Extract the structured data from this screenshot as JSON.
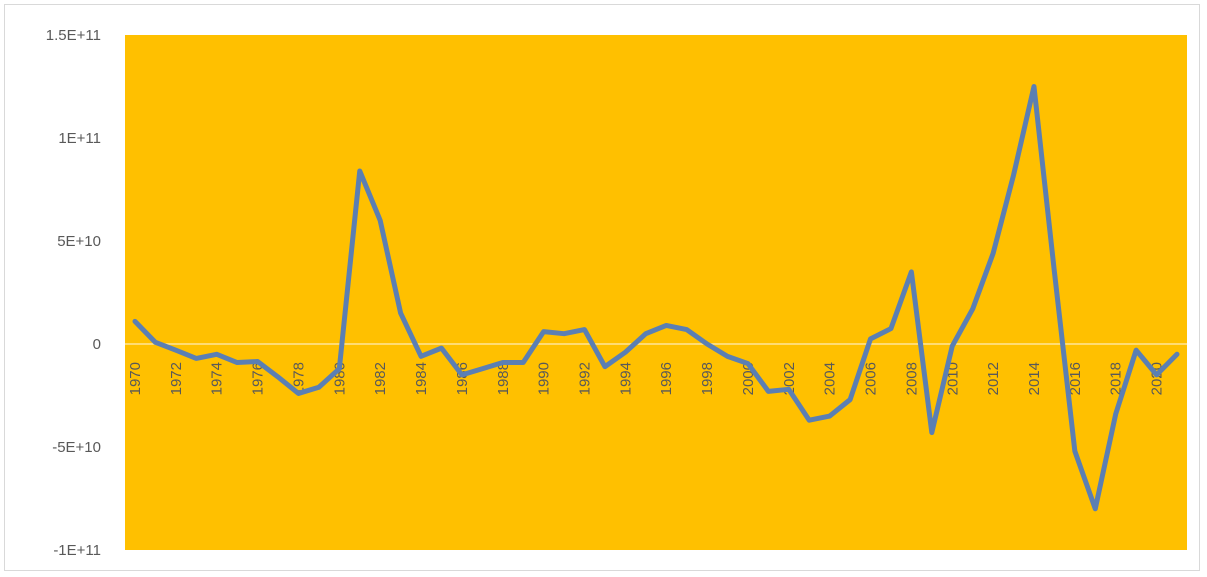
{
  "chart_data": {
    "type": "line",
    "title": "",
    "xlabel": "",
    "ylabel": "",
    "ylim": [
      -100000000000,
      150000000000
    ],
    "y_ticks": [
      {
        "value": 150000000000,
        "label": "1.5E+11"
      },
      {
        "value": 100000000000,
        "label": "1E+11"
      },
      {
        "value": 50000000000,
        "label": "5E+10"
      },
      {
        "value": 0,
        "label": "0"
      },
      {
        "value": -50000000000,
        "label": "-5E+10"
      },
      {
        "value": -100000000000,
        "label": "-1E+11"
      }
    ],
    "x_tick_labels": [
      "1970",
      "1972",
      "1974",
      "1976",
      "1978",
      "1980",
      "1982",
      "1984",
      "1986",
      "1988",
      "1990",
      "1992",
      "1994",
      "1996",
      "1998",
      "2000",
      "2002",
      "2004",
      "2006",
      "2008",
      "2010",
      "2012",
      "2014",
      "2016",
      "2018",
      "2020"
    ],
    "grid": false,
    "legend": "none",
    "colors": {
      "plot_area": "#ffc000",
      "line": "#5b7fb3",
      "zero_line": "#ffe699",
      "tick_text": "#595959"
    },
    "series": [
      {
        "x": [
          1970,
          1971,
          1972,
          1973,
          1974,
          1975,
          1976,
          1977,
          1978,
          1979,
          1980,
          1981,
          1982,
          1983,
          1984,
          1985,
          1986,
          1987,
          1988,
          1989,
          1990,
          1991,
          1992,
          1993,
          1994,
          1995,
          1996,
          1997,
          1998,
          1999,
          2000,
          2001,
          2002,
          2003,
          2004,
          2005,
          2006,
          2007,
          2008,
          2009,
          2010,
          2011,
          2012,
          2013,
          2014,
          2015,
          2016,
          2017,
          2018,
          2019,
          2020,
          2021
        ],
        "values": [
          11000000000,
          800000000,
          -3000000000,
          -7000000000,
          -5000000000,
          -9000000000,
          -8500000000,
          -16000000000,
          -24000000000,
          -21000000000,
          -12000000000,
          84000000000,
          60000000000,
          15000000000,
          -6000000000,
          -2000000000,
          -15000000000,
          -12000000000,
          -9000000000,
          -9000000000,
          6000000000,
          5000000000,
          7000000000,
          -11000000000,
          -4000000000,
          5000000000,
          9000000000,
          7000000000,
          0,
          -6000000000,
          -9500000000,
          -23000000000,
          -22000000000,
          -37000000000,
          -35000000000,
          -27000000000,
          2500000000,
          7500000000,
          35000000000,
          -43000000000,
          -1000000000,
          17000000000,
          44000000000,
          82000000000,
          125000000000,
          35000000000,
          -52000000000,
          -80000000000,
          -34000000000,
          -3000000000,
          -15000000000,
          -5000000000
        ]
      }
    ]
  }
}
